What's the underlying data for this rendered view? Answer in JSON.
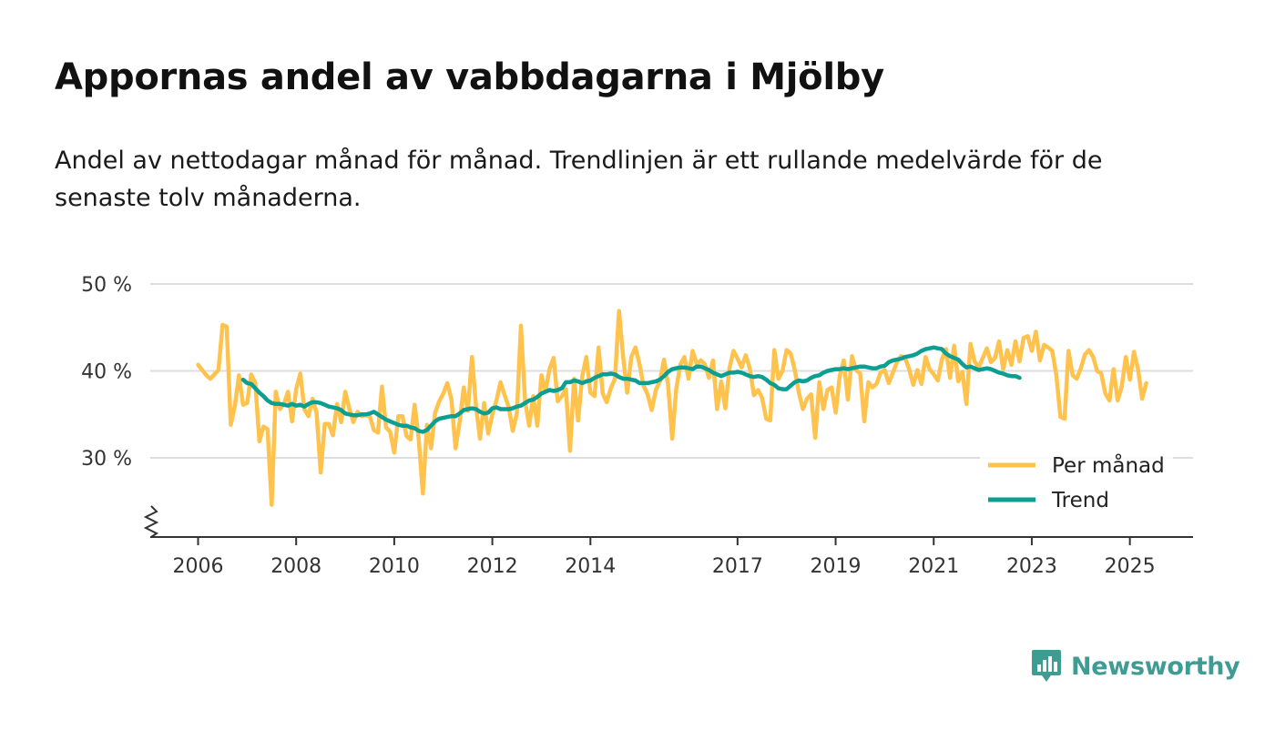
{
  "header": {
    "title": "Appornas andel av vabbdagarna i Mjölby",
    "subtitle": "Andel av nettodagar månad för månad. Trendlinjen är ett rullande medelvärde för de senaste tolv månaderna."
  },
  "brand": {
    "name": "Newsworthy",
    "icon": "newsworthy-logo-icon"
  },
  "colors": {
    "monthly": "#ffc34d",
    "trend": "#0b9e91",
    "grid": "#dddddd",
    "axis": "#333333",
    "brand": "#3f9c92"
  },
  "chart_data": {
    "type": "line",
    "title": "Appornas andel av vabbdagarna i Mjölby",
    "ylim": [
      21,
      50
    ],
    "xlim": [
      2005.5,
      2026.3
    ],
    "y_ticks": [
      30,
      40,
      50
    ],
    "y_tick_labels": [
      "30 %",
      "40 %",
      "50 %"
    ],
    "x_ticks": [
      2006,
      2008,
      2010,
      2012,
      2014,
      2017,
      2019,
      2021,
      2023,
      2025
    ],
    "x_tick_labels": [
      "2006",
      "2008",
      "2010",
      "2012",
      "2014",
      "2017",
      "2019",
      "2021",
      "2023",
      "2025"
    ],
    "grid": true,
    "legend_position": "bottom-right",
    "legend": [
      "Per månad",
      "Trend"
    ],
    "series": [
      {
        "name": "Per månad",
        "start": 2006.0,
        "step_months": 1,
        "values": [
          40.7,
          40.1,
          39.5,
          39.1,
          39.6,
          40.1,
          45.3,
          45.1,
          33.8,
          36.0,
          39.5,
          36.1,
          36.3,
          39.6,
          38.6,
          31.9,
          33.6,
          33.3,
          24.6,
          37.6,
          35.6,
          36.2,
          37.6,
          34.2,
          37.9,
          39.7,
          35.6,
          34.8,
          36.8,
          35.2,
          28.3,
          33.9,
          33.9,
          32.6,
          36.2,
          34.1,
          37.6,
          35.7,
          34.1,
          35.3,
          34.8,
          34.9,
          34.8,
          33.2,
          32.9,
          38.2,
          33.5,
          33.0,
          30.6,
          34.8,
          34.8,
          32.5,
          32.1,
          36.1,
          32.1,
          25.9,
          33.8,
          31.1,
          35.2,
          36.5,
          37.4,
          38.6,
          36.7,
          31.1,
          34.1,
          38.1,
          35.4,
          41.6,
          35.9,
          32.2,
          36.3,
          32.8,
          35.0,
          36.6,
          38.7,
          37.2,
          35.9,
          33.1,
          35.1,
          45.2,
          36.6,
          33.7,
          37.1,
          33.7,
          39.5,
          37.7,
          40.2,
          41.5,
          36.5,
          37.1,
          37.9,
          30.8,
          39.1,
          34.3,
          39.4,
          41.6,
          37.5,
          37.1,
          42.7,
          37.4,
          36.4,
          38.0,
          39.1,
          46.9,
          41.6,
          37.5,
          41.6,
          42.7,
          40.8,
          38.3,
          37.3,
          35.5,
          37.8,
          38.8,
          41.3,
          38.4,
          32.2,
          37.9,
          40.7,
          41.6,
          39.1,
          42.3,
          40.8,
          41.2,
          40.8,
          39.2,
          41.2,
          35.6,
          38.8,
          35.7,
          40.3,
          42.3,
          41.4,
          40.4,
          41.8,
          40.3,
          37.2,
          37.8,
          36.9,
          34.5,
          34.3,
          42.4,
          39.1,
          40.0,
          42.4,
          42.0,
          40.1,
          37.5,
          35.6,
          36.8,
          37.3,
          32.3,
          38.7,
          35.6,
          37.8,
          38.1,
          35.2,
          39.4,
          41.2,
          36.7,
          41.7,
          40.1,
          39.7,
          34.2,
          38.7,
          38.1,
          38.5,
          39.8,
          40.1,
          38.6,
          39.8,
          41.0,
          41.7,
          41.5,
          40.2,
          38.4,
          40.1,
          38.5,
          41.6,
          40.2,
          39.6,
          38.9,
          41.3,
          42.5,
          39.2,
          42.9,
          38.8,
          39.9,
          36.2,
          43.1,
          41.1,
          40.4,
          41.5,
          42.6,
          41.0,
          41.5,
          43.4,
          40.2,
          42.4,
          40.7,
          43.4,
          41.1,
          43.8,
          44.0,
          42.3,
          44.5,
          41.2,
          43.0,
          42.7,
          42.3,
          39.5,
          34.7,
          34.5,
          42.3,
          39.5,
          39.1,
          40.3,
          41.9,
          42.4,
          41.6,
          40.0,
          39.7,
          37.4,
          36.6,
          40.2,
          36.6,
          38.2,
          41.6,
          39.0,
          42.2,
          40.2,
          36.8,
          38.6
        ]
      },
      {
        "name": "Trend",
        "start": 2006.9167,
        "step_months": 1,
        "values": [
          39.0,
          38.6,
          38.5,
          38.0,
          37.5,
          37.1,
          36.6,
          36.3,
          36.2,
          36.2,
          36.1,
          36.0,
          36.2,
          36.0,
          36.1,
          35.9,
          36.2,
          36.4,
          36.4,
          36.3,
          36.1,
          35.9,
          35.8,
          35.7,
          35.5,
          35.1,
          35.0,
          34.9,
          34.9,
          35.0,
          35.0,
          35.1,
          35.3,
          35.0,
          34.7,
          34.4,
          34.2,
          34.0,
          33.8,
          33.7,
          33.7,
          33.5,
          33.4,
          33.1,
          33.0,
          33.2,
          33.7,
          34.2,
          34.5,
          34.6,
          34.7,
          34.8,
          34.8,
          35.1,
          35.5,
          35.6,
          35.7,
          35.6,
          35.3,
          35.1,
          35.2,
          35.7,
          35.8,
          35.6,
          35.6,
          35.6,
          35.7,
          35.9,
          36.0,
          36.3,
          36.6,
          36.7,
          37.0,
          37.4,
          37.6,
          37.8,
          37.7,
          37.8,
          38.0,
          38.7,
          38.7,
          38.9,
          38.8,
          38.6,
          38.8,
          38.9,
          39.2,
          39.4,
          39.6,
          39.6,
          39.7,
          39.6,
          39.3,
          39.1,
          39.1,
          39.0,
          38.9,
          38.6,
          38.6,
          38.6,
          38.7,
          38.8,
          39.0,
          39.4,
          39.9,
          40.2,
          40.3,
          40.4,
          40.4,
          40.3,
          40.2,
          40.5,
          40.5,
          40.3,
          40.1,
          39.8,
          39.6,
          39.4,
          39.6,
          39.8,
          39.8,
          39.9,
          39.8,
          39.6,
          39.4,
          39.3,
          39.4,
          39.3,
          39.0,
          38.6,
          38.4,
          38.0,
          37.9,
          37.9,
          38.3,
          38.7,
          38.9,
          38.8,
          38.9,
          39.2,
          39.4,
          39.5,
          39.8,
          40.0,
          40.1,
          40.2,
          40.2,
          40.3,
          40.2,
          40.3,
          40.4,
          40.5,
          40.5,
          40.4,
          40.3,
          40.3,
          40.5,
          40.6,
          41.0,
          41.2,
          41.3,
          41.4,
          41.6,
          41.7,
          41.8,
          42.0,
          42.3,
          42.5,
          42.6,
          42.7,
          42.6,
          42.5,
          42.0,
          41.7,
          41.5,
          41.3,
          40.8,
          40.4,
          40.5,
          40.3,
          40.1,
          40.2,
          40.3,
          40.2,
          40.0,
          39.8,
          39.7,
          39.5,
          39.4,
          39.4,
          39.2
        ]
      }
    ]
  }
}
